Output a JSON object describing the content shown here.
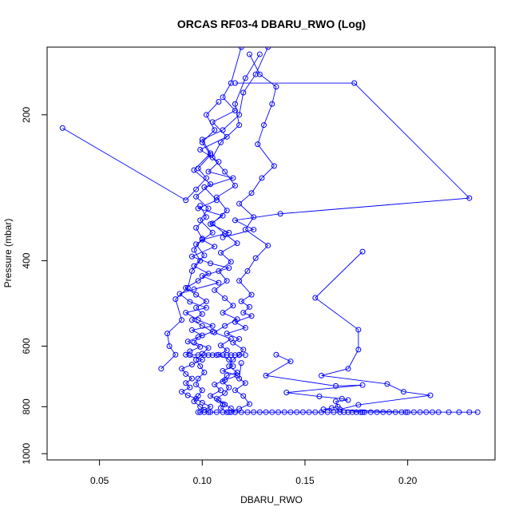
{
  "chart_data": {
    "type": "scatter",
    "title": "ORCAS RF03-4 DBARU_RWO (Log)",
    "xlabel": "DBARU_RWO",
    "ylabel": "Pressure (mbar)",
    "xlim": [
      0.0245,
      0.2425
    ],
    "ylim": [
      1030,
      145
    ],
    "y_reversed": true,
    "x_ticks": [
      0.05,
      0.1,
      0.15,
      0.2
    ],
    "x_tick_labels": [
      "0.05",
      "0.10",
      "0.15",
      "0.20"
    ],
    "y_ticks": [
      200,
      400,
      600,
      800,
      1000
    ],
    "y_tick_labels": [
      "200",
      "400",
      "600",
      "800",
      "1000"
    ],
    "grid": false,
    "legend": "none",
    "color": "#0000ff",
    "series": [
      {
        "points": [
          [
            0.119,
            145
          ],
          [
            0.114,
            172
          ],
          [
            0.11,
            184
          ],
          [
            0.116,
            196
          ],
          [
            0.105,
            207
          ],
          [
            0.112,
            222
          ],
          [
            0.099,
            236
          ],
          [
            0.108,
            250
          ],
          [
            0.103,
            262
          ],
          [
            0.115,
            270
          ],
          [
            0.101,
            282
          ],
          [
            0.107,
            300
          ],
          [
            0.098,
            312
          ],
          [
            0.11,
            323
          ],
          [
            0.104,
            336
          ],
          [
            0.113,
            350
          ],
          [
            0.1,
            362
          ],
          [
            0.106,
            374
          ],
          [
            0.095,
            392
          ],
          [
            0.104,
            405
          ],
          [
            0.113,
            414
          ],
          [
            0.1,
            430
          ],
          [
            0.108,
            444
          ],
          [
            0.096,
            458
          ],
          [
            0.089,
            468
          ],
          [
            0.094,
            486
          ],
          [
            0.102,
            500
          ],
          [
            0.092,
            512
          ],
          [
            0.098,
            530
          ],
          [
            0.105,
            545
          ],
          [
            0.095,
            556
          ],
          [
            0.1,
            570
          ],
          [
            0.093,
            587
          ],
          [
            0.099,
            602
          ],
          [
            0.094,
            615
          ],
          [
            0.092,
            625
          ],
          [
            0.1,
            640
          ],
          [
            0.095,
            655
          ],
          [
            0.09,
            668
          ],
          [
            0.092,
            685
          ],
          [
            0.095,
            700
          ],
          [
            0.092,
            715
          ],
          [
            0.094,
            730
          ],
          [
            0.09,
            745
          ],
          [
            0.093,
            758
          ],
          [
            0.097,
            770
          ],
          [
            0.1,
            785
          ],
          [
            0.104,
            800
          ],
          [
            0.101,
            812
          ],
          [
            0.099,
            821
          ]
        ]
      },
      {
        "points": [
          [
            0.132,
            145
          ],
          [
            0.126,
            165
          ],
          [
            0.12,
            180
          ],
          [
            0.118,
            200
          ],
          [
            0.11,
            215
          ],
          [
            0.1,
            225
          ],
          [
            0.104,
            240
          ],
          [
            0.096,
            260
          ],
          [
            0.104,
            278
          ],
          [
            0.097,
            295
          ],
          [
            0.103,
            312
          ],
          [
            0.099,
            330
          ],
          [
            0.105,
            350
          ],
          [
            0.097,
            370
          ],
          [
            0.101,
            390
          ],
          [
            0.096,
            410
          ],
          [
            0.103,
            425
          ],
          [
            0.098,
            440
          ],
          [
            0.092,
            455
          ],
          [
            0.097,
            470
          ],
          [
            0.102,
            485
          ],
          [
            0.097,
            500
          ],
          [
            0.1,
            515
          ],
          [
            0.095,
            530
          ],
          [
            0.1,
            545
          ],
          [
            0.105,
            560
          ],
          [
            0.098,
            575
          ],
          [
            0.096,
            590
          ],
          [
            0.103,
            605
          ],
          [
            0.1,
            622
          ],
          [
            0.097,
            640
          ],
          [
            0.099,
            660
          ],
          [
            0.101,
            680
          ],
          [
            0.098,
            700
          ],
          [
            0.097,
            720
          ],
          [
            0.1,
            740
          ],
          [
            0.098,
            760
          ],
          [
            0.096,
            780
          ],
          [
            0.099,
            800
          ],
          [
            0.103,
            821
          ]
        ]
      },
      {
        "points": [
          [
            0.128,
            150
          ],
          [
            0.121,
            168
          ],
          [
            0.116,
            190
          ],
          [
            0.118,
            210
          ],
          [
            0.109,
            228
          ],
          [
            0.105,
            245
          ],
          [
            0.111,
            262
          ],
          [
            0.116,
            280
          ],
          [
            0.107,
            296
          ],
          [
            0.112,
            315
          ],
          [
            0.105,
            335
          ],
          [
            0.111,
            352
          ],
          [
            0.117,
            368
          ],
          [
            0.109,
            385
          ],
          [
            0.114,
            402
          ],
          [
            0.108,
            420
          ],
          [
            0.112,
            440
          ],
          [
            0.106,
            460
          ],
          [
            0.111,
            478
          ],
          [
            0.115,
            495
          ],
          [
            0.11,
            512
          ],
          [
            0.117,
            528
          ],
          [
            0.111,
            545
          ],
          [
            0.106,
            562
          ],
          [
            0.114,
            580
          ],
          [
            0.109,
            598
          ],
          [
            0.112,
            612
          ],
          [
            0.108,
            625
          ],
          [
            0.113,
            640
          ],
          [
            0.115,
            660
          ],
          [
            0.11,
            675
          ],
          [
            0.117,
            690
          ],
          [
            0.111,
            705
          ],
          [
            0.106,
            720
          ],
          [
            0.109,
            740
          ],
          [
            0.104,
            760
          ],
          [
            0.108,
            775
          ],
          [
            0.111,
            792
          ],
          [
            0.114,
            806
          ],
          [
            0.116,
            821
          ]
        ]
      },
      {
        "points": [
          [
            0.123,
            150
          ],
          [
            0.128,
            165
          ],
          [
            0.136,
            175
          ],
          [
            0.134,
            190
          ],
          [
            0.13,
            210
          ],
          [
            0.127,
            230
          ],
          [
            0.135,
            255
          ],
          [
            0.129,
            270
          ],
          [
            0.124,
            290
          ],
          [
            0.118,
            305
          ],
          [
            0.125,
            325
          ],
          [
            0.121,
            345
          ],
          [
            0.132,
            372
          ],
          [
            0.126,
            395
          ],
          [
            0.122,
            420
          ],
          [
            0.118,
            440
          ],
          [
            0.124,
            470
          ],
          [
            0.119,
            485
          ],
          [
            0.123,
            498
          ],
          [
            0.12,
            512
          ],
          [
            0.124,
            520
          ],
          [
            0.116,
            535
          ],
          [
            0.121,
            550
          ],
          [
            0.112,
            565
          ],
          [
            0.118,
            580
          ],
          [
            0.115,
            590
          ],
          [
            0.12,
            610
          ],
          [
            0.118,
            625
          ],
          [
            0.115,
            640
          ],
          [
            0.113,
            660
          ],
          [
            0.117,
            680
          ],
          [
            0.112,
            690
          ],
          [
            0.11,
            710
          ],
          [
            0.113,
            730
          ],
          [
            0.111,
            750
          ],
          [
            0.107,
            770
          ],
          [
            0.11,
            790
          ],
          [
            0.109,
            805
          ],
          [
            0.112,
            821
          ]
        ]
      },
      {
        "points": [
          [
            0.032,
            213
          ],
          [
            0.092,
            300
          ],
          [
            0.097,
            285
          ],
          [
            0.102,
            270
          ],
          [
            0.098,
            258
          ],
          [
            0.104,
            242
          ],
          [
            0.1,
            228
          ],
          [
            0.106,
            215
          ],
          [
            0.102,
            200
          ],
          [
            0.108,
            188
          ]
        ]
      },
      {
        "points": [
          [
            0.116,
            172
          ],
          [
            0.174,
            172
          ],
          [
            0.23,
            297
          ],
          [
            0.138,
            320
          ],
          [
            0.116,
            330
          ],
          [
            0.125,
            345
          ],
          [
            0.11,
            358
          ]
        ]
      },
      {
        "points": [
          [
            0.178,
            383
          ],
          [
            0.155,
            477
          ],
          [
            0.176,
            555
          ],
          [
            0.176,
            610
          ],
          [
            0.171,
            668
          ],
          [
            0.158,
            690
          ],
          [
            0.19,
            718
          ],
          [
            0.198,
            745
          ],
          [
            0.211,
            758
          ],
          [
            0.176,
            793
          ],
          [
            0.167,
            810
          ],
          [
            0.178,
            821
          ]
        ]
      },
      {
        "points": [
          [
            0.136,
            625
          ],
          [
            0.143,
            645
          ],
          [
            0.131,
            690
          ],
          [
            0.165,
            725
          ],
          [
            0.178,
            722
          ],
          [
            0.141,
            748
          ],
          [
            0.157,
            762
          ],
          [
            0.168,
            770
          ],
          [
            0.171,
            775
          ],
          [
            0.165,
            780
          ],
          [
            0.166,
            800
          ],
          [
            0.163,
            805
          ],
          [
            0.159,
            810
          ],
          [
            0.199,
            821
          ]
        ]
      },
      {
        "points": [
          [
            0.103,
            626
          ],
          [
            0.107,
            626
          ],
          [
            0.112,
            626
          ],
          [
            0.116,
            626
          ],
          [
            0.118,
            626
          ],
          [
            0.121,
            626
          ],
          [
            0.098,
            626
          ],
          [
            0.094,
            626
          ],
          [
            0.101,
            626
          ],
          [
            0.105,
            626
          ],
          [
            0.11,
            626
          ],
          [
            0.114,
            626
          ]
        ]
      },
      {
        "points": [
          [
            0.098,
            821
          ],
          [
            0.101,
            821
          ],
          [
            0.104,
            821
          ],
          [
            0.107,
            821
          ],
          [
            0.11,
            821
          ],
          [
            0.113,
            821
          ],
          [
            0.116,
            821
          ],
          [
            0.119,
            821
          ],
          [
            0.122,
            821
          ],
          [
            0.125,
            821
          ],
          [
            0.128,
            821
          ],
          [
            0.131,
            821
          ],
          [
            0.134,
            821
          ],
          [
            0.137,
            821
          ],
          [
            0.14,
            821
          ],
          [
            0.143,
            821
          ],
          [
            0.146,
            821
          ],
          [
            0.149,
            821
          ],
          [
            0.152,
            821
          ],
          [
            0.155,
            821
          ],
          [
            0.158,
            821
          ],
          [
            0.161,
            821
          ],
          [
            0.164,
            821
          ],
          [
            0.167,
            821
          ],
          [
            0.169,
            821
          ],
          [
            0.171,
            821
          ],
          [
            0.173,
            821
          ],
          [
            0.175,
            821
          ],
          [
            0.177,
            821
          ],
          [
            0.179,
            821
          ],
          [
            0.182,
            821
          ],
          [
            0.185,
            821
          ],
          [
            0.188,
            821
          ],
          [
            0.191,
            821
          ],
          [
            0.194,
            821
          ],
          [
            0.197,
            821
          ],
          [
            0.2,
            821
          ],
          [
            0.203,
            821
          ],
          [
            0.206,
            821
          ],
          [
            0.209,
            821
          ],
          [
            0.212,
            821
          ],
          [
            0.215,
            821
          ],
          [
            0.22,
            821
          ],
          [
            0.225,
            821
          ],
          [
            0.23,
            821
          ],
          [
            0.234,
            821
          ]
        ]
      },
      {
        "points": [
          [
            0.08,
            668
          ],
          [
            0.087,
            625
          ],
          [
            0.084,
            600
          ],
          [
            0.083,
            565
          ],
          [
            0.09,
            530
          ],
          [
            0.087,
            480
          ],
          [
            0.093,
            455
          ],
          [
            0.095,
            420
          ],
          [
            0.099,
            400
          ],
          [
            0.096,
            380
          ],
          [
            0.1,
            360
          ],
          [
            0.097,
            342
          ],
          [
            0.102,
            325
          ],
          [
            0.099,
            308
          ]
        ]
      },
      {
        "points": [
          [
            0.119,
            650
          ],
          [
            0.118,
            700
          ],
          [
            0.121,
            715
          ],
          [
            0.116,
            740
          ],
          [
            0.12,
            760
          ],
          [
            0.123,
            790
          ],
          [
            0.118,
            808
          ],
          [
            0.114,
            821
          ]
        ]
      }
    ]
  }
}
